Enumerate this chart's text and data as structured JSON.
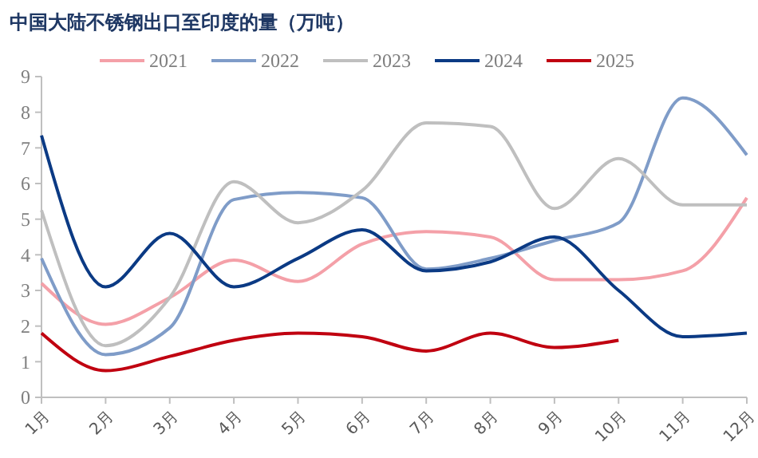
{
  "chart_data": {
    "type": "line",
    "title": "中国大陆不锈钢出口至印度的量（万吨）",
    "categories": [
      "1月",
      "2月",
      "3月",
      "4月",
      "5月",
      "6月",
      "7月",
      "8月",
      "9月",
      "10月",
      "11月",
      "12月"
    ],
    "series": [
      {
        "name": "2021",
        "color": "#f4a0a8",
        "values": [
          3.2,
          2.05,
          2.8,
          3.85,
          3.25,
          4.3,
          4.65,
          4.5,
          3.3,
          3.3,
          3.55,
          5.6
        ]
      },
      {
        "name": "2022",
        "color": "#7f9cc8",
        "values": [
          3.9,
          1.2,
          1.95,
          5.55,
          5.75,
          5.6,
          3.6,
          3.9,
          4.4,
          4.9,
          8.4,
          6.8
        ]
      },
      {
        "name": "2023",
        "color": "#bfbfbf",
        "values": [
          5.25,
          1.45,
          2.8,
          6.05,
          4.9,
          5.8,
          7.7,
          7.6,
          5.3,
          6.7,
          5.4,
          5.4
        ]
      },
      {
        "name": "2024",
        "color": "#0b3a84",
        "values": [
          7.35,
          3.1,
          4.6,
          3.1,
          3.9,
          4.7,
          3.55,
          3.8,
          4.5,
          3.0,
          1.7,
          1.8
        ]
      },
      {
        "name": "2025",
        "color": "#c00010",
        "values": [
          1.8,
          0.75,
          1.15,
          1.6,
          1.8,
          1.7,
          1.3,
          1.8,
          1.4,
          1.6,
          null,
          null
        ]
      }
    ],
    "ylim": [
      0,
      9
    ],
    "yticks": [
      0,
      1,
      2,
      3,
      4,
      5,
      6,
      7,
      8,
      9
    ],
    "grid": false,
    "legend": "top",
    "marker": "none",
    "line_style": "solid"
  }
}
